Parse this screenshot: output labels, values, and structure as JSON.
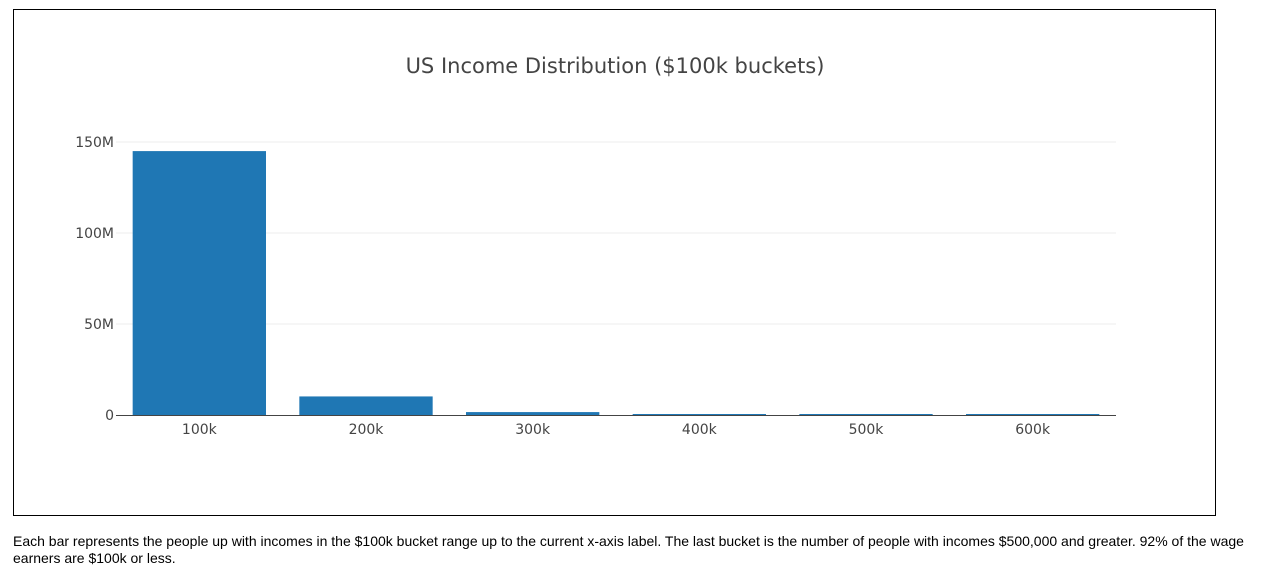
{
  "colors": {
    "bar": "#1f77b4",
    "grid": "#eeeeee",
    "axis": "#444444",
    "text": "#444444"
  },
  "chart_data": {
    "type": "bar",
    "title": "US Income Distribution ($100k buckets)",
    "xlabel": "",
    "ylabel": "",
    "categories": [
      "100k",
      "200k",
      "300k",
      "400k",
      "500k",
      "600k"
    ],
    "values": [
      145000000,
      10200000,
      1600000,
      400000,
      250000,
      500000
    ],
    "ylim": [
      0,
      150000000
    ],
    "yticks": [
      {
        "value": 0,
        "label": "0"
      },
      {
        "value": 50000000,
        "label": "50M"
      },
      {
        "value": 100000000,
        "label": "100M"
      },
      {
        "value": 150000000,
        "label": "150M"
      }
    ],
    "grid": true,
    "legend": "none"
  },
  "caption": "Each bar represents the people up with incomes in the $100k bucket range up to the current x-axis label. The last bucket is the number of people with incomes $500,000 and greater. 92% of the wage earners are $100k or less."
}
